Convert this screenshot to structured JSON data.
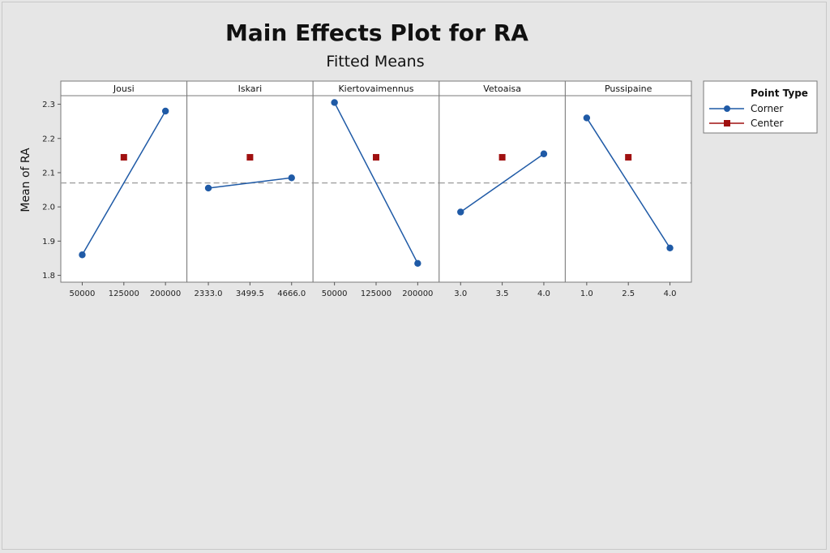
{
  "chart_data": {
    "type": "line",
    "title": "Main Effects Plot for RA",
    "subtitle": "Fitted Means",
    "ylabel": "Mean of RA",
    "ylim": [
      1.78,
      2.325
    ],
    "yticks": [
      "1.8",
      "1.9",
      "2.0",
      "2.1",
      "2.2",
      "2.3"
    ],
    "reference_mean": 2.07,
    "reference_line_style": "dashed",
    "legend": {
      "title": "Point Type",
      "placement": "right",
      "entries": [
        {
          "label": "Corner",
          "marker": "circle",
          "color": "#1f5aa6"
        },
        {
          "label": "Center",
          "marker": "square",
          "color": "#a01010"
        }
      ]
    },
    "panels": [
      {
        "factor": "Jousi",
        "ticks": [
          "50000",
          "125000",
          "200000"
        ],
        "corner": [
          {
            "x": "50000",
            "y": 1.86
          },
          {
            "x": "200000",
            "y": 2.28
          }
        ],
        "center": {
          "x": "125000",
          "y": 2.145
        }
      },
      {
        "factor": "Iskari",
        "ticks": [
          "2333.0",
          "3499.5",
          "4666.0"
        ],
        "corner": [
          {
            "x": "2333.0",
            "y": 2.055
          },
          {
            "x": "4666.0",
            "y": 2.085
          }
        ],
        "center": {
          "x": "3499.5",
          "y": 2.145
        }
      },
      {
        "factor": "Kiertovaimennus",
        "ticks": [
          "50000",
          "125000",
          "200000"
        ],
        "corner": [
          {
            "x": "50000",
            "y": 2.305
          },
          {
            "x": "200000",
            "y": 1.835
          }
        ],
        "center": {
          "x": "125000",
          "y": 2.145
        }
      },
      {
        "factor": "Vetoaisa",
        "ticks": [
          "3.0",
          "3.5",
          "4.0"
        ],
        "corner": [
          {
            "x": "3.0",
            "y": 1.985
          },
          {
            "x": "4.0",
            "y": 2.155
          }
        ],
        "center": {
          "x": "3.5",
          "y": 2.145
        }
      },
      {
        "factor": "Pussipaine",
        "ticks": [
          "1.0",
          "2.5",
          "4.0"
        ],
        "corner": [
          {
            "x": "1.0",
            "y": 2.26
          },
          {
            "x": "4.0",
            "y": 1.88
          }
        ],
        "center": {
          "x": "2.5",
          "y": 2.145
        }
      }
    ],
    "colors": {
      "corner": "#1f5aa6",
      "center": "#a01010",
      "reference": "#9a9a9a"
    }
  }
}
